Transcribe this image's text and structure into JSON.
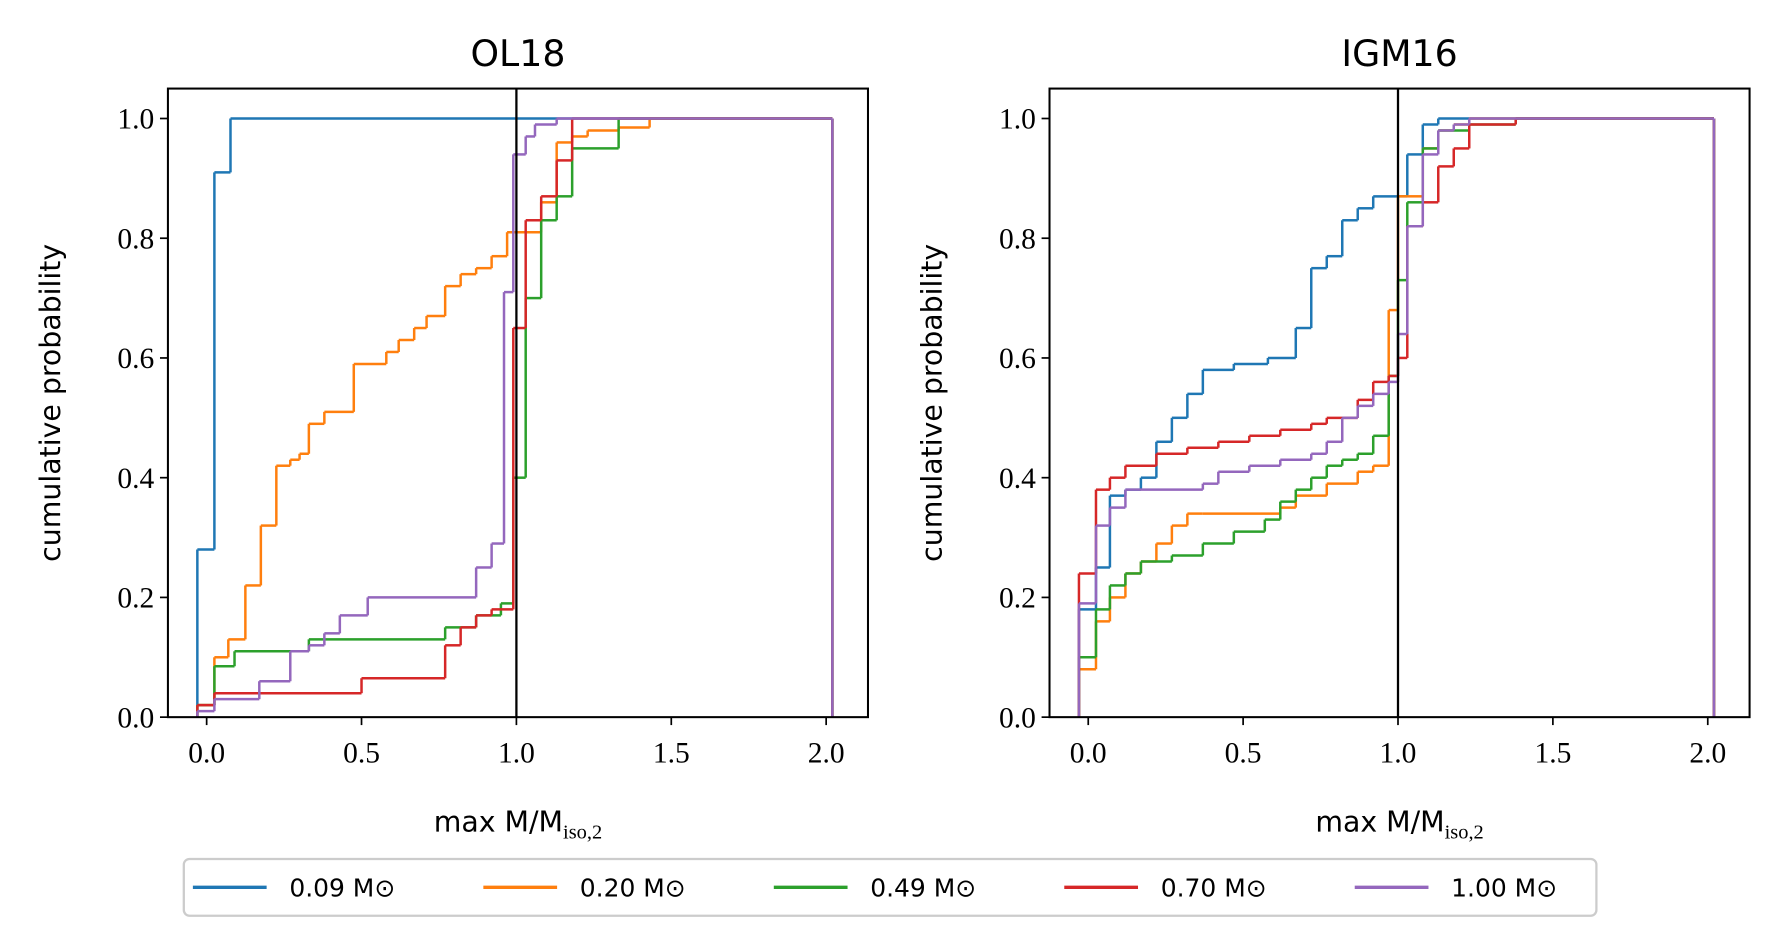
{
  "chart_data": [
    {
      "type": "step",
      "title": "OL18",
      "ylabel": "cumulative probability",
      "xlabel": {
        "text": "max M/M",
        "sub": "iso,2"
      },
      "xlim": [
        -0.125,
        2.135
      ],
      "ylim": [
        0,
        1.05
      ],
      "xticks": [
        {
          "value": 0,
          "label": "0.0"
        },
        {
          "value": 0.5,
          "label": "0.5"
        },
        {
          "value": 1,
          "label": "1.0"
        },
        {
          "value": 1.5,
          "label": "1.5"
        },
        {
          "value": 2,
          "label": "2.0"
        }
      ],
      "yticks": [
        {
          "value": 0,
          "label": "0.0"
        },
        {
          "value": 0.2,
          "label": "0.2"
        },
        {
          "value": 0.4,
          "label": "0.4"
        },
        {
          "value": 0.6,
          "label": "0.6"
        },
        {
          "value": 0.8,
          "label": "0.8"
        },
        {
          "value": 1,
          "label": "1.0"
        }
      ],
      "vline": 1,
      "series": [
        {
          "name": "0.09 M⊙",
          "color": "#1f77b4",
          "bins": [
            -0.03,
            0.025,
            0.077,
            2.02
          ],
          "values": [
            0.28,
            0.91,
            1.0
          ]
        },
        {
          "name": "0.20 M⊙",
          "color": "#ff7f0e",
          "bins": [
            -0.03,
            0.025,
            0.07,
            0.125,
            0.175,
            0.225,
            0.27,
            0.3,
            0.33,
            0.38,
            0.475,
            0.58,
            0.62,
            0.67,
            0.71,
            0.77,
            0.82,
            0.87,
            0.92,
            0.97,
            1.08,
            1.13,
            1.18,
            1.23,
            1.33,
            1.43,
            2.02
          ],
          "values": [
            0.02,
            0.1,
            0.13,
            0.22,
            0.32,
            0.42,
            0.43,
            0.44,
            0.49,
            0.51,
            0.59,
            0.61,
            0.63,
            0.65,
            0.67,
            0.72,
            0.74,
            0.75,
            0.77,
            0.81,
            0.86,
            0.96,
            0.97,
            0.98,
            0.985,
            1.0
          ]
        },
        {
          "name": "0.49 M⊙",
          "color": "#2ca02c",
          "bins": [
            -0.03,
            0.025,
            0.09,
            0.33,
            0.77,
            0.87,
            0.95,
            0.99,
            1.03,
            1.08,
            1.13,
            1.18,
            1.33,
            2.02
          ],
          "values": [
            0.02,
            0.085,
            0.11,
            0.13,
            0.15,
            0.17,
            0.19,
            0.4,
            0.7,
            0.83,
            0.87,
            0.95,
            1.0
          ]
        },
        {
          "name": "0.70 M⊙",
          "color": "#d62728",
          "bins": [
            -0.03,
            0.025,
            0.5,
            0.77,
            0.82,
            0.87,
            0.92,
            0.99,
            1.03,
            1.08,
            1.13,
            1.18,
            2.02
          ],
          "values": [
            0.02,
            0.04,
            0.065,
            0.12,
            0.15,
            0.17,
            0.18,
            0.65,
            0.83,
            0.87,
            0.93,
            1.0
          ]
        },
        {
          "name": "1.00 M⊙",
          "color": "#9467bd",
          "bins": [
            -0.03,
            0.025,
            0.17,
            0.27,
            0.33,
            0.38,
            0.43,
            0.52,
            0.87,
            0.92,
            0.96,
            0.99,
            1.03,
            1.06,
            1.13,
            2.02
          ],
          "values": [
            0.01,
            0.03,
            0.06,
            0.11,
            0.12,
            0.14,
            0.17,
            0.2,
            0.25,
            0.29,
            0.71,
            0.94,
            0.97,
            0.99,
            1.0
          ]
        }
      ]
    },
    {
      "type": "step",
      "title": "IGM16",
      "ylabel": "cumulative probability",
      "xlabel": {
        "text": "max M/M",
        "sub": "iso,2"
      },
      "xlim": [
        -0.125,
        2.135
      ],
      "ylim": [
        0,
        1.05
      ],
      "xticks": [
        {
          "value": 0,
          "label": "0.0"
        },
        {
          "value": 0.5,
          "label": "0.5"
        },
        {
          "value": 1,
          "label": "1.0"
        },
        {
          "value": 1.5,
          "label": "1.5"
        },
        {
          "value": 2,
          "label": "2.0"
        }
      ],
      "yticks": [
        {
          "value": 0,
          "label": "0.0"
        },
        {
          "value": 0.2,
          "label": "0.2"
        },
        {
          "value": 0.4,
          "label": "0.4"
        },
        {
          "value": 0.6,
          "label": "0.6"
        },
        {
          "value": 0.8,
          "label": "0.8"
        },
        {
          "value": 1,
          "label": "1.0"
        }
      ],
      "vline": 1,
      "series": [
        {
          "color": "#1f77b4",
          "bins": [
            -0.03,
            0.025,
            0.07,
            0.12,
            0.17,
            0.22,
            0.27,
            0.32,
            0.37,
            0.47,
            0.58,
            0.67,
            0.72,
            0.77,
            0.82,
            0.87,
            0.92,
            1.0,
            1.03,
            1.08,
            1.13,
            1.23,
            2.02
          ],
          "values": [
            0.18,
            0.25,
            0.37,
            0.38,
            0.4,
            0.46,
            0.5,
            0.54,
            0.58,
            0.59,
            0.6,
            0.65,
            0.75,
            0.77,
            0.83,
            0.85,
            0.87,
            0.87,
            0.94,
            0.99,
            1.0,
            1.0
          ]
        },
        {
          "color": "#ff7f0e",
          "bins": [
            -0.03,
            0.025,
            0.07,
            0.12,
            0.17,
            0.22,
            0.27,
            0.32,
            0.37,
            0.62,
            0.67,
            0.77,
            0.87,
            0.92,
            0.97,
            1.0,
            1.03,
            1.08,
            1.13,
            1.18,
            1.23,
            2.02
          ],
          "values": [
            0.08,
            0.16,
            0.2,
            0.24,
            0.26,
            0.29,
            0.32,
            0.34,
            0.34,
            0.35,
            0.37,
            0.39,
            0.41,
            0.42,
            0.68,
            0.87,
            0.87,
            0.95,
            0.98,
            0.99,
            1.0
          ]
        },
        {
          "color": "#2ca02c",
          "bins": [
            -0.03,
            0.025,
            0.07,
            0.12,
            0.17,
            0.27,
            0.37,
            0.47,
            0.57,
            0.62,
            0.67,
            0.72,
            0.77,
            0.82,
            0.87,
            0.92,
            0.97,
            1.0,
            1.03,
            1.08,
            1.13,
            1.23,
            1.38,
            2.02
          ],
          "values": [
            0.1,
            0.18,
            0.22,
            0.24,
            0.26,
            0.27,
            0.29,
            0.31,
            0.33,
            0.36,
            0.38,
            0.4,
            0.42,
            0.43,
            0.44,
            0.47,
            0.57,
            0.73,
            0.86,
            0.95,
            0.98,
            0.99,
            1.0
          ]
        },
        {
          "color": "#d62728",
          "bins": [
            -0.03,
            0.025,
            0.07,
            0.12,
            0.22,
            0.32,
            0.42,
            0.52,
            0.62,
            0.72,
            0.77,
            0.87,
            0.92,
            0.97,
            1.0,
            1.03,
            1.08,
            1.13,
            1.18,
            1.23,
            1.38,
            2.02
          ],
          "values": [
            0.24,
            0.38,
            0.4,
            0.42,
            0.44,
            0.45,
            0.46,
            0.47,
            0.48,
            0.49,
            0.5,
            0.53,
            0.56,
            0.57,
            0.6,
            0.82,
            0.86,
            0.92,
            0.95,
            0.99,
            1.0
          ]
        },
        {
          "color": "#9467bd",
          "bins": [
            -0.03,
            0.025,
            0.07,
            0.12,
            0.37,
            0.42,
            0.52,
            0.62,
            0.72,
            0.77,
            0.82,
            0.87,
            0.92,
            0.97,
            1.0,
            1.03,
            1.08,
            1.13,
            1.18,
            1.23,
            2.02
          ],
          "values": [
            0.19,
            0.32,
            0.35,
            0.38,
            0.39,
            0.41,
            0.42,
            0.43,
            0.44,
            0.46,
            0.5,
            0.52,
            0.54,
            0.56,
            0.64,
            0.82,
            0.94,
            0.98,
            0.99,
            1.0
          ]
        }
      ]
    }
  ]
}
